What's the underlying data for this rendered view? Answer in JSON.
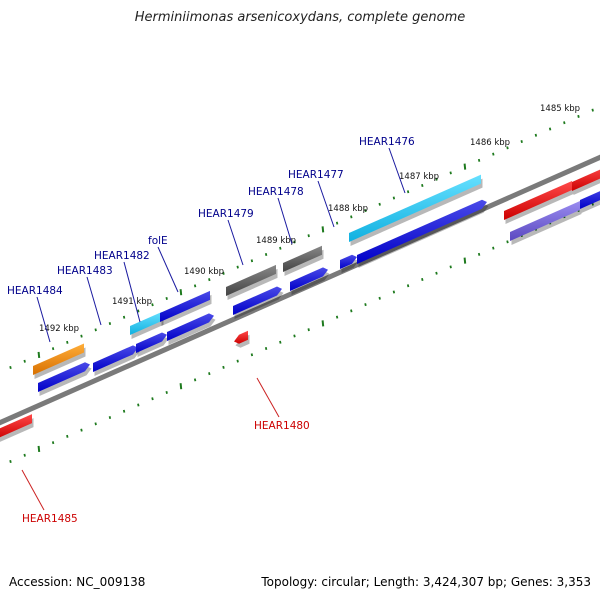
{
  "title": "Herminiimonas arsenicoxydans, complete genome",
  "footer": {
    "accession": "Accession: NC_009138",
    "summary": "Topology: circular; Length: 3,424,307 bp; Genes: 3,353"
  },
  "colors": {
    "backbone": "#808080",
    "tick": "#1e7a1e",
    "label_forward": "#00008b",
    "label_reverse": "#cc0000"
  },
  "kbp_labels": [
    "1485 kbp",
    "1486 kbp",
    "1487 kbp",
    "1488 kbp",
    "1489 kbp",
    "1490 kbp",
    "1491 kbp",
    "1492 kbp"
  ],
  "gene_labels_forward": [
    "HEAR1476",
    "HEAR1477",
    "HEAR1478",
    "HEAR1479",
    "folE",
    "HEAR1482",
    "HEAR1483",
    "HEAR1484"
  ],
  "gene_labels_reverse": [
    "HEAR1480",
    "HEAR1485"
  ]
}
